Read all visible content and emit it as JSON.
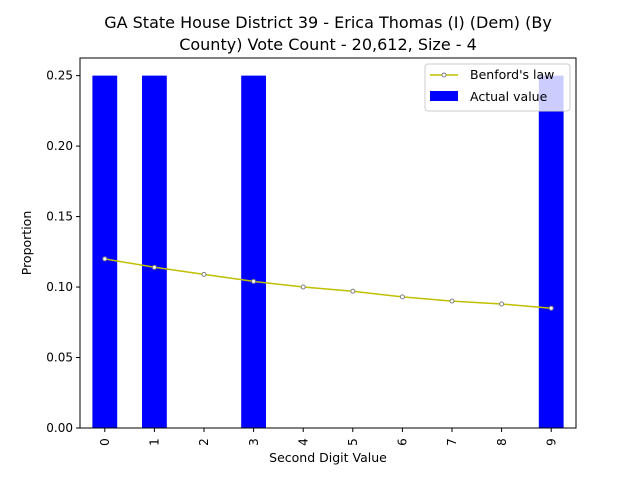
{
  "chart_data": {
    "type": "bar",
    "title_lines": [
      "GA State House District 39 - Erica Thomas (I) (Dem) (By",
      "County) Vote Count - 20,612, Size - 4"
    ],
    "xlabel": "Second Digit Value",
    "ylabel": "Proportion",
    "categories": [
      "0",
      "1",
      "2",
      "3",
      "4",
      "5",
      "6",
      "7",
      "8",
      "9"
    ],
    "yticks": [
      "0.00",
      "0.05",
      "0.10",
      "0.15",
      "0.20",
      "0.25"
    ],
    "ylim": [
      0,
      0.2625
    ],
    "grid": false,
    "legend_position": "upper right",
    "series": [
      {
        "name": "Actual value",
        "kind": "bar",
        "color": "#0000ff",
        "values": [
          0.25,
          0.25,
          0.0,
          0.25,
          0.0,
          0.0,
          0.0,
          0.0,
          0.0,
          0.25
        ]
      },
      {
        "name": "Benford's law",
        "kind": "line",
        "color": "#bfbf00",
        "marker_edge": "#808080",
        "values": [
          0.12,
          0.114,
          0.109,
          0.104,
          0.1,
          0.097,
          0.093,
          0.09,
          0.088,
          0.085
        ]
      }
    ]
  }
}
